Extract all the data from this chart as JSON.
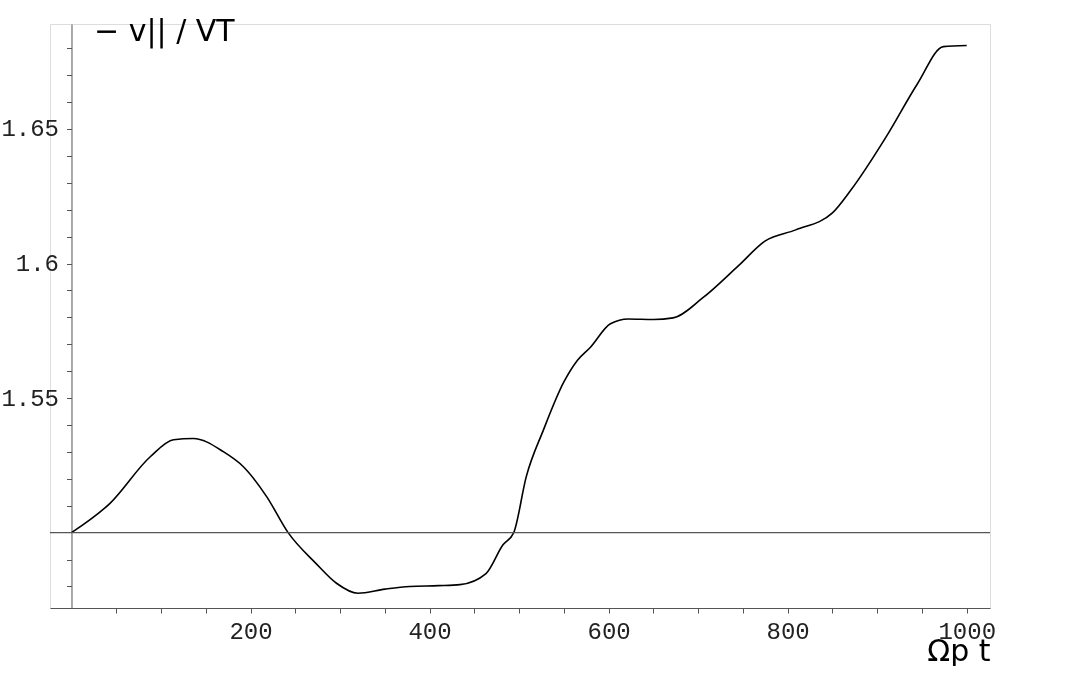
{
  "chart_data": {
    "type": "line",
    "xlabel": "Ωp t",
    "ylabel": "− v|| / VT",
    "x": [
      0,
      43,
      88,
      114,
      136,
      170,
      192,
      218,
      242,
      273,
      296,
      320,
      350,
      378,
      410,
      434,
      463,
      482,
      494,
      508,
      527,
      550,
      565,
      580,
      602,
      622,
      650,
      672,
      705,
      746,
      775,
      809,
      850,
      870,
      911,
      945,
      974,
      1000
    ],
    "series": [
      {
        "color": "#000000",
        "values": [
          1.5,
          1.5109,
          1.5282,
          1.5345,
          1.535,
          1.53,
          1.5245,
          1.5134,
          1.5,
          1.4886,
          1.4812,
          1.4775,
          1.479,
          1.48,
          1.4803,
          1.4807,
          1.4848,
          1.4955,
          1.5,
          1.5208,
          1.538,
          1.556,
          1.564,
          1.569,
          1.5776,
          1.5794,
          1.5792,
          1.5798,
          1.5872,
          1.5995,
          1.6084,
          1.6125,
          1.6188,
          1.627,
          1.6476,
          1.6668,
          1.6806,
          1.681
        ]
      }
    ],
    "xlim": [
      -24,
      1026
    ],
    "ylim": [
      1.472,
      1.689
    ],
    "xticks": [
      {
        "value": 50,
        "label": null
      },
      {
        "value": 100,
        "label": null
      },
      {
        "value": 150,
        "label": null
      },
      200,
      {
        "value": 250,
        "label": null
      },
      {
        "value": 300,
        "label": null
      },
      {
        "value": 350,
        "label": null
      },
      400,
      {
        "value": 450,
        "label": null
      },
      {
        "value": 500,
        "label": null
      },
      {
        "value": 550,
        "label": null
      },
      600,
      {
        "value": 650,
        "label": null
      },
      {
        "value": 700,
        "label": null
      },
      {
        "value": 750,
        "label": null
      },
      800,
      {
        "value": 850,
        "label": null
      },
      {
        "value": 900,
        "label": null
      },
      {
        "value": 950,
        "label": null
      },
      1000
    ],
    "yticks": [
      {
        "value": 1.48,
        "label": null
      },
      {
        "value": 1.49,
        "label": null
      },
      {
        "value": 1.51,
        "label": null
      },
      {
        "value": 1.52,
        "label": null
      },
      {
        "value": 1.53,
        "label": null
      },
      {
        "value": 1.54,
        "label": null
      },
      1.55,
      {
        "value": 1.56,
        "label": null
      },
      {
        "value": 1.57,
        "label": null
      },
      {
        "value": 1.58,
        "label": null
      },
      {
        "value": 1.59,
        "label": null
      },
      1.6,
      {
        "value": 1.61,
        "label": null
      },
      {
        "value": 1.62,
        "label": null
      },
      {
        "value": 1.63,
        "label": null
      },
      {
        "value": 1.64,
        "label": null
      },
      1.65,
      {
        "value": 1.66,
        "label": null
      },
      {
        "value": 1.67,
        "label": null
      },
      {
        "value": 1.68,
        "label": null
      }
    ],
    "ref_lines": [
      {
        "axis": "y",
        "value": 1.5,
        "color": "#555555"
      }
    ],
    "grid": false,
    "marker": "none",
    "line_style": "solid"
  }
}
